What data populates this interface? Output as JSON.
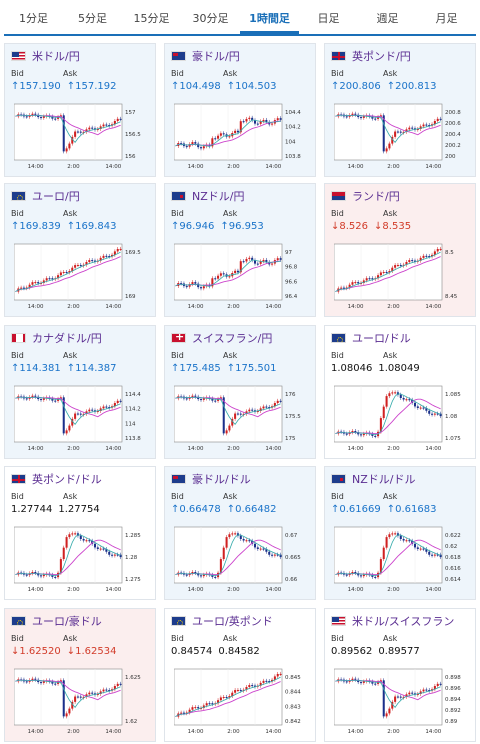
{
  "tabs": [
    "1分足",
    "5分足",
    "15分足",
    "30分足",
    "1時間足",
    "日足",
    "週足",
    "月足"
  ],
  "active_tab": 4,
  "labels": {
    "bid": "Bid",
    "ask": "Ask"
  },
  "colors": {
    "up": "#1a73c9",
    "down": "#d23c2a",
    "ma_long": "#cc44cc",
    "ma_short": "#33aaaa",
    "candle_up": "#d02020",
    "candle_down": "#1a2f8a"
  },
  "cards": [
    {
      "pair": "米ドル/円",
      "flag": "us",
      "direction": "up",
      "bid": "157.190",
      "ask": "157.192",
      "y_ticks": [
        "157",
        "156.5",
        "156"
      ],
      "x_ticks": [
        "14:00",
        "2:00",
        "14:00"
      ],
      "pattern": "drop"
    },
    {
      "pair": "豪ドル/円",
      "flag": "au",
      "direction": "up",
      "bid": "104.498",
      "ask": "104.503",
      "y_ticks": [
        "104.4",
        "104.2",
        "104",
        "103.8"
      ],
      "x_ticks": [
        "14:00",
        "2:00",
        "14:00"
      ],
      "pattern": "steps"
    },
    {
      "pair": "英ポンド/円",
      "flag": "gb",
      "direction": "up",
      "bid": "200.806",
      "ask": "200.813",
      "y_ticks": [
        "200.8",
        "200.6",
        "200.4",
        "200.2",
        "200"
      ],
      "x_ticks": [
        "14:00",
        "2:00",
        "14:00"
      ],
      "pattern": "drop"
    },
    {
      "pair": "ユーロ/円",
      "flag": "eu",
      "direction": "up",
      "bid": "169.839",
      "ask": "169.843",
      "y_ticks": [
        "169.5",
        "169"
      ],
      "x_ticks": [
        "14:00",
        "2:00",
        "14:00"
      ],
      "pattern": "rise"
    },
    {
      "pair": "NZドル/円",
      "flag": "nz",
      "direction": "up",
      "bid": "96.946",
      "ask": "96.953",
      "y_ticks": [
        "97",
        "96.8",
        "96.6",
        "96.4"
      ],
      "x_ticks": [
        "14:00",
        "2:00",
        "14:00"
      ],
      "pattern": "steps"
    },
    {
      "pair": "ランド/円",
      "flag": "za",
      "direction": "down",
      "bid": "8.526",
      "ask": "8.535",
      "y_ticks": [
        "8.5",
        "8.45"
      ],
      "x_ticks": [
        "14:00",
        "2:00",
        "14:00"
      ],
      "pattern": "rise"
    },
    {
      "pair": "カナダドル/円",
      "flag": "ca",
      "direction": "up",
      "bid": "114.381",
      "ask": "114.387",
      "y_ticks": [
        "114.4",
        "114.2",
        "114",
        "113.8"
      ],
      "x_ticks": [
        "14:00",
        "2:00",
        "14:00"
      ],
      "pattern": "drop"
    },
    {
      "pair": "スイスフラン/円",
      "flag": "ch",
      "direction": "up",
      "bid": "175.485",
      "ask": "175.501",
      "y_ticks": [
        "176",
        "175.5",
        "175"
      ],
      "x_ticks": [
        "14:00",
        "2:00",
        "14:00"
      ],
      "pattern": "drop"
    },
    {
      "pair": "ユーロ/ドル",
      "flag": "eu",
      "direction": "neutral",
      "bid": "1.08046",
      "ask": "1.08049",
      "y_ticks": [
        "1.085",
        "1.08",
        "1.075"
      ],
      "x_ticks": [
        "14:00",
        "2:00",
        "14:00"
      ],
      "pattern": "spike"
    },
    {
      "pair": "英ポンド/ドル",
      "flag": "gb",
      "direction": "neutral",
      "bid": "1.27744",
      "ask": "1.27754",
      "y_ticks": [
        "1.285",
        "1.28",
        "1.275"
      ],
      "x_ticks": [
        "14:00",
        "2:00",
        "14:00"
      ],
      "pattern": "spike"
    },
    {
      "pair": "豪ドル/ドル",
      "flag": "au",
      "direction": "up",
      "bid": "0.66478",
      "ask": "0.66482",
      "y_ticks": [
        "0.67",
        "0.665",
        "0.66"
      ],
      "x_ticks": [
        "14:00",
        "2:00",
        "14:00"
      ],
      "pattern": "spike"
    },
    {
      "pair": "NZドル/ドル",
      "flag": "nz",
      "direction": "up",
      "bid": "0.61669",
      "ask": "0.61683",
      "y_ticks": [
        "0.622",
        "0.62",
        "0.618",
        "0.616",
        "0.614"
      ],
      "x_ticks": [
        "14:00",
        "2:00",
        "14:00"
      ],
      "pattern": "spike"
    },
    {
      "pair": "ユーロ/豪ドル",
      "flag": "eu",
      "direction": "down",
      "bid": "1.62520",
      "ask": "1.62534",
      "y_ticks": [
        "1.625",
        "1.62"
      ],
      "x_ticks": [
        "14:00",
        "2:00",
        "14:00"
      ],
      "pattern": "drop"
    },
    {
      "pair": "ユーロ/英ポンド",
      "flag": "eu",
      "direction": "neutral",
      "bid": "0.84574",
      "ask": "0.84582",
      "y_ticks": [
        "0.845",
        "0.844",
        "0.843",
        "0.842"
      ],
      "x_ticks": [
        "14:00",
        "2:00",
        "14:00"
      ],
      "pattern": "rise"
    },
    {
      "pair": "米ドル/スイスフラン",
      "flag": "us",
      "direction": "neutral",
      "bid": "0.89562",
      "ask": "0.89577",
      "y_ticks": [
        "0.898",
        "0.896",
        "0.894",
        "0.892",
        "0.89"
      ],
      "x_ticks": [
        "14:00",
        "2:00",
        "14:00"
      ],
      "pattern": "drop"
    }
  ]
}
